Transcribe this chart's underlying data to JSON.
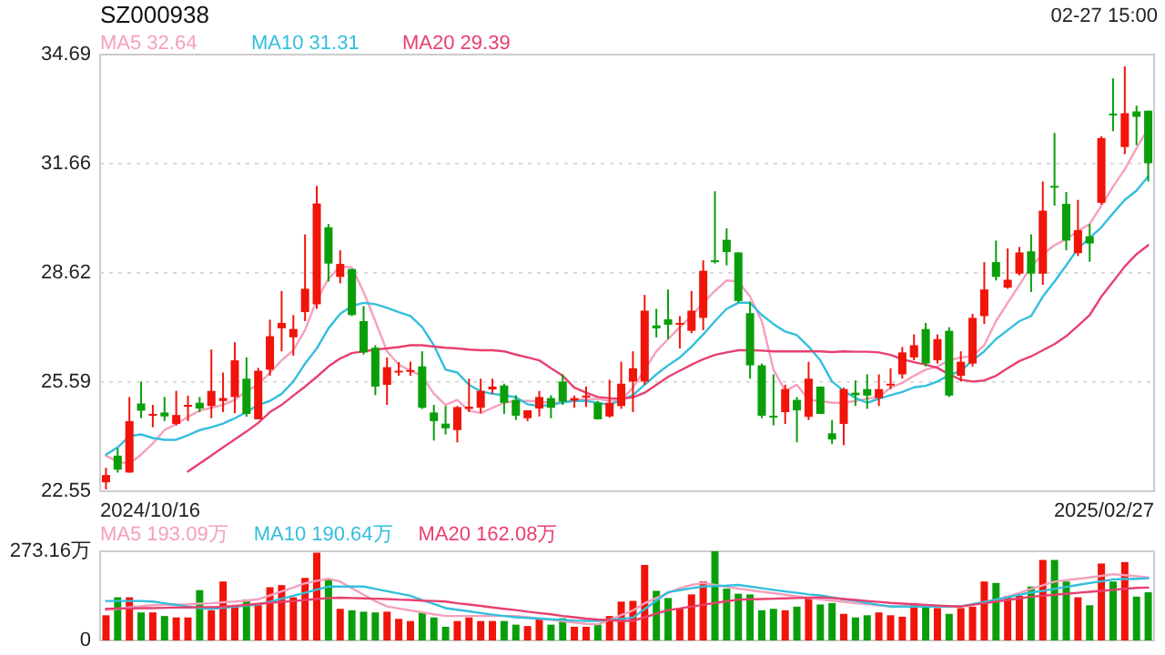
{
  "chart_data": [
    {
      "type": "candlestick",
      "title": "SZ000938",
      "annotations": [
        "02-27 15:00",
        "2024/10/16",
        "2025/02/27"
      ],
      "tick_labels": "y",
      "categories": [
        null,
        null,
        null,
        null,
        null,
        null,
        null,
        null,
        null,
        null,
        null,
        null,
        null,
        null,
        null,
        null,
        null,
        null,
        null,
        null,
        null,
        null,
        null,
        null,
        null,
        null,
        null,
        null,
        null,
        null,
        null,
        null,
        null,
        null,
        null,
        null,
        null,
        null,
        null,
        null,
        null,
        null,
        null,
        null,
        null,
        null,
        null,
        null,
        null,
        null,
        null,
        null,
        null,
        null,
        null,
        null,
        null,
        null,
        null,
        null,
        null,
        null,
        null,
        null,
        null,
        null,
        null,
        null,
        null,
        null,
        null,
        null,
        null,
        null,
        null,
        null,
        null,
        null,
        null,
        null,
        null,
        null,
        null,
        null,
        null,
        null,
        null,
        null,
        null,
        null
      ],
      "ohlc": [
        [
          22.8,
          23.2,
          22.6,
          23.0
        ],
        [
          23.54,
          23.74,
          23.07,
          23.15
        ],
        [
          23.07,
          25.17,
          23.07,
          24.5
        ],
        [
          24.99,
          25.6,
          24.58,
          24.79
        ],
        [
          24.67,
          24.95,
          24.33,
          24.7
        ],
        [
          24.74,
          25.17,
          24.5,
          24.63
        ],
        [
          24.42,
          25.34,
          24.38,
          24.67
        ],
        [
          24.92,
          25.21,
          24.5,
          24.95
        ],
        [
          25.01,
          25.17,
          24.75,
          24.85
        ],
        [
          24.92,
          26.49,
          24.58,
          25.34
        ],
        [
          25.06,
          25.85,
          24.75,
          25.14
        ],
        [
          25.17,
          26.69,
          24.72,
          26.19
        ],
        [
          25.68,
          26.27,
          24.62,
          24.7
        ],
        [
          24.55,
          25.98,
          24.55,
          25.9
        ],
        [
          25.93,
          27.32,
          25.76,
          26.86
        ],
        [
          27.08,
          28.12,
          26.44,
          27.23
        ],
        [
          26.83,
          27.45,
          26.32,
          27.06
        ],
        [
          27.53,
          29.69,
          27.28,
          28.18
        ],
        [
          27.75,
          31.04,
          27.62,
          30.55
        ],
        [
          29.89,
          29.98,
          28.38,
          28.88
        ],
        [
          28.51,
          29.25,
          28.33,
          28.87
        ],
        [
          28.73,
          28.73,
          27.42,
          27.45
        ],
        [
          27.28,
          27.7,
          26.35,
          26.41
        ],
        [
          26.54,
          26.61,
          25.22,
          25.46
        ],
        [
          25.51,
          26.27,
          24.95,
          26.0
        ],
        [
          25.87,
          26.14,
          25.76,
          25.9
        ],
        [
          25.88,
          26.15,
          25.76,
          25.92
        ],
        [
          26.02,
          26.44,
          24.84,
          24.87
        ],
        [
          24.74,
          24.95,
          23.96,
          24.5
        ],
        [
          24.43,
          24.92,
          24.13,
          24.3
        ],
        [
          24.25,
          24.92,
          23.91,
          24.89
        ],
        [
          24.84,
          25.68,
          24.75,
          24.9
        ],
        [
          24.87,
          25.68,
          24.72,
          25.34
        ],
        [
          25.38,
          25.68,
          25.26,
          25.46
        ],
        [
          25.49,
          25.54,
          24.7,
          25.01
        ],
        [
          25.09,
          25.22,
          24.53,
          24.65
        ],
        [
          24.58,
          24.8,
          24.5,
          24.8
        ],
        [
          24.85,
          25.34,
          24.63,
          25.17
        ],
        [
          25.14,
          25.22,
          24.58,
          24.87
        ],
        [
          25.6,
          25.8,
          24.95,
          25.04
        ],
        [
          25.07,
          25.21,
          24.87,
          25.14
        ],
        [
          25.16,
          25.46,
          24.89,
          25.21
        ],
        [
          25.01,
          25.06,
          24.55,
          24.55
        ],
        [
          24.63,
          25.65,
          24.6,
          25.01
        ],
        [
          24.92,
          26.15,
          24.84,
          25.54
        ],
        [
          25.6,
          26.44,
          24.75,
          25.97
        ],
        [
          25.6,
          28.01,
          25.51,
          27.57
        ],
        [
          27.16,
          27.62,
          26.83,
          27.08
        ],
        [
          27.33,
          28.16,
          26.78,
          27.18
        ],
        [
          27.18,
          27.42,
          26.52,
          27.23
        ],
        [
          27.01,
          28.12,
          26.94,
          27.57
        ],
        [
          27.37,
          28.97,
          27.03,
          28.68
        ],
        [
          28.97,
          30.89,
          28.88,
          28.93
        ],
        [
          29.54,
          29.86,
          28.83,
          29.2
        ],
        [
          29.19,
          29.19,
          27.79,
          27.84
        ],
        [
          27.5,
          27.82,
          25.68,
          26.05
        ],
        [
          26.05,
          26.1,
          24.58,
          24.65
        ],
        [
          24.65,
          25.8,
          24.38,
          24.62
        ],
        [
          24.75,
          25.51,
          24.42,
          25.39
        ],
        [
          25.09,
          25.17,
          23.91,
          24.8
        ],
        [
          24.62,
          26.15,
          24.53,
          25.68
        ],
        [
          25.46,
          25.46,
          24.7,
          24.7
        ],
        [
          24.16,
          24.53,
          23.86,
          23.99
        ],
        [
          24.42,
          25.43,
          23.83,
          25.39
        ],
        [
          25.29,
          25.63,
          24.92,
          25.22
        ],
        [
          25.39,
          25.8,
          24.84,
          25.21
        ],
        [
          25.14,
          25.8,
          24.92,
          25.39
        ],
        [
          25.49,
          25.97,
          25.39,
          25.54
        ],
        [
          25.8,
          26.56,
          25.68,
          26.41
        ],
        [
          26.27,
          26.91,
          26.19,
          26.61
        ],
        [
          27.06,
          27.23,
          26.02,
          26.1
        ],
        [
          26.19,
          26.91,
          26.1,
          26.78
        ],
        [
          27.01,
          27.11,
          25.17,
          25.21
        ],
        [
          25.76,
          26.44,
          25.6,
          26.15
        ],
        [
          26.1,
          27.48,
          26.02,
          27.37
        ],
        [
          27.42,
          28.92,
          27.2,
          28.16
        ],
        [
          28.92,
          29.52,
          28.41,
          28.51
        ],
        [
          28.21,
          29.3,
          28.18,
          28.43
        ],
        [
          28.6,
          29.34,
          28.55,
          29.19
        ],
        [
          29.22,
          29.69,
          28.09,
          28.6
        ],
        [
          28.6,
          31.16,
          28.29,
          30.35
        ],
        [
          31.04,
          32.51,
          30.49,
          30.99
        ],
        [
          30.54,
          30.87,
          29.25,
          29.52
        ],
        [
          29.17,
          30.65,
          29.09,
          29.81
        ],
        [
          29.64,
          29.98,
          28.93,
          29.44
        ],
        [
          30.57,
          32.42,
          30.52,
          32.37
        ],
        [
          33.05,
          34.03,
          32.56,
          33.01
        ],
        [
          32.12,
          34.36,
          31.92,
          33.06
        ],
        [
          33.11,
          33.27,
          32.17,
          32.96
        ],
        [
          33.13,
          33.13,
          31.16,
          31.67
        ]
      ],
      "colors": [
        "#f0140a",
        "#0a9f0a",
        "#f0140a",
        "#0a9f0a",
        "#f0140a",
        "#0a9f0a",
        "#f0140a",
        "#f0140a",
        "#0a9f0a",
        "#f0140a",
        "#f0140a",
        "#f0140a",
        "#0a9f0a",
        "#f0140a",
        "#f0140a",
        "#f0140a",
        "#f0140a",
        "#f0140a",
        "#f0140a",
        "#0a9f0a",
        "#f0140a",
        "#0a9f0a",
        "#0a9f0a",
        "#0a9f0a",
        "#f0140a",
        "#f0140a",
        "#f0140a",
        "#0a9f0a",
        "#0a9f0a",
        "#0a9f0a",
        "#f0140a",
        "#f0140a",
        "#f0140a",
        "#f0140a",
        "#0a9f0a",
        "#0a9f0a",
        "#f0140a",
        "#f0140a",
        "#0a9f0a",
        "#0a9f0a",
        "#f0140a",
        "#f0140a",
        "#0a9f0a",
        "#f0140a",
        "#f0140a",
        "#f0140a",
        "#f0140a",
        "#0a9f0a",
        "#0a9f0a",
        "#f0140a",
        "#f0140a",
        "#f0140a",
        "#0a9f0a",
        "#0a9f0a",
        "#0a9f0a",
        "#0a9f0a",
        "#0a9f0a",
        "#0a9f0a",
        "#f0140a",
        "#0a9f0a",
        "#f0140a",
        "#0a9f0a",
        "#0a9f0a",
        "#f0140a",
        "#0a9f0a",
        "#0a9f0a",
        "#f0140a",
        "#f0140a",
        "#f0140a",
        "#f0140a",
        "#0a9f0a",
        "#f0140a",
        "#0a9f0a",
        "#f0140a",
        "#f0140a",
        "#f0140a",
        "#0a9f0a",
        "#f0140a",
        "#f0140a",
        "#0a9f0a",
        "#f0140a",
        "#0a9f0a",
        "#0a9f0a",
        "#f0140a",
        "#0a9f0a",
        "#f0140a",
        "#0a9f0a",
        "#f0140a",
        "#0a9f0a",
        "#0a9f0a"
      ],
      "series": [
        {
          "type": "line",
          "name": "MA5 32.64",
          "color": "#f5a0bd",
          "values": [
            23.54,
            23.37,
            23.32,
            23.57,
            23.88,
            24.25,
            24.42,
            24.62,
            24.79,
            24.87,
            24.95,
            25.09,
            25.34,
            25.51,
            25.85,
            26.19,
            26.47,
            27.03,
            27.87,
            28.46,
            28.8,
            28.77,
            28.09,
            27.28,
            26.44,
            26.07,
            25.9,
            25.76,
            25.26,
            24.95,
            25.09,
            24.79,
            24.72,
            24.87,
            25.01,
            25.06,
            25.06,
            25.04,
            25.01,
            25.02,
            25.09,
            25.11,
            25.12,
            25.06,
            25.09,
            25.43,
            25.93,
            26.44,
            26.78,
            27.11,
            27.42,
            27.79,
            28.12,
            28.41,
            28.38,
            27.96,
            27.28,
            25.93,
            25.34,
            25.51,
            25.09,
            25.06,
            25.01,
            25.01,
            25.06,
            25.12,
            25.17,
            25.43,
            25.56,
            25.76,
            25.93,
            26.02,
            26.19,
            26.27,
            26.3,
            26.61,
            27.28,
            27.79,
            28.29,
            28.8,
            29.14,
            29.39,
            29.56,
            29.78,
            29.98,
            30.49,
            31.02,
            31.5,
            32.09,
            32.64
          ]
        },
        {
          "type": "line",
          "name": "MA10 31.31",
          "color": "#33bfdc",
          "values": [
            23.57,
            23.77,
            24.08,
            24.13,
            24.03,
            23.98,
            23.98,
            24.11,
            24.25,
            24.33,
            24.43,
            24.58,
            24.75,
            24.95,
            25.06,
            25.26,
            25.6,
            26.1,
            26.52,
            27.08,
            27.48,
            27.7,
            27.79,
            27.75,
            27.65,
            27.53,
            27.42,
            27.11,
            26.61,
            25.93,
            25.85,
            25.51,
            25.33,
            25.26,
            25.22,
            25.16,
            24.97,
            24.92,
            24.95,
            25.02,
            25.06,
            25.06,
            25.01,
            24.95,
            25.09,
            25.22,
            25.51,
            25.8,
            26.05,
            26.27,
            26.57,
            26.91,
            27.28,
            27.62,
            27.79,
            27.79,
            27.45,
            27.2,
            26.99,
            26.89,
            26.57,
            26.19,
            25.6,
            25.34,
            25.14,
            25.01,
            25.12,
            25.22,
            25.31,
            25.44,
            25.48,
            25.6,
            25.78,
            25.9,
            26.19,
            26.44,
            26.78,
            27.03,
            27.28,
            27.42,
            27.96,
            28.38,
            28.83,
            29.3,
            29.59,
            29.89,
            30.28,
            30.65,
            30.91,
            31.31
          ]
        },
        {
          "type": "line",
          "name": "MA20 29.39",
          "color": "#e8406f",
          "values": [
            null,
            null,
            null,
            null,
            null,
            null,
            null,
            23.1,
            23.32,
            23.54,
            23.77,
            23.99,
            24.21,
            24.45,
            24.75,
            24.95,
            25.21,
            25.46,
            25.73,
            26.02,
            26.24,
            26.39,
            26.44,
            26.49,
            26.52,
            26.56,
            26.61,
            26.61,
            26.57,
            26.54,
            26.52,
            26.49,
            26.47,
            26.47,
            26.44,
            26.35,
            26.27,
            26.19,
            25.97,
            25.76,
            25.43,
            25.29,
            25.17,
            25.14,
            25.12,
            25.16,
            25.29,
            25.51,
            25.73,
            25.9,
            26.07,
            26.22,
            26.34,
            26.41,
            26.47,
            26.47,
            26.46,
            26.44,
            26.44,
            26.44,
            26.44,
            26.44,
            26.42,
            26.44,
            26.43,
            26.43,
            26.41,
            26.34,
            26.22,
            26.14,
            26.07,
            25.98,
            25.8,
            25.65,
            25.6,
            25.63,
            25.76,
            25.97,
            26.17,
            26.3,
            26.47,
            26.64,
            26.86,
            27.15,
            27.45,
            27.96,
            28.38,
            28.8,
            29.14,
            29.39
          ]
        }
      ],
      "ylim": [
        22.55,
        34.69
      ],
      "yticks": [
        22.55,
        25.59,
        28.62,
        31.66,
        34.69
      ],
      "grid": "y",
      "legend": "top left"
    },
    {
      "type": "bar",
      "categories": [
        null,
        null,
        null,
        null,
        null,
        null,
        null,
        null,
        null,
        null,
        null,
        null,
        null,
        null,
        null,
        null,
        null,
        null,
        null,
        null,
        null,
        null,
        null,
        null,
        null,
        null,
        null,
        null,
        null,
        null,
        null,
        null,
        null,
        null,
        null,
        null,
        null,
        null,
        null,
        null,
        null,
        null,
        null,
        null,
        null,
        null,
        null,
        null,
        null,
        null,
        null,
        null,
        null,
        null,
        null,
        null,
        null,
        null,
        null,
        null,
        null,
        null,
        null,
        null,
        null,
        null,
        null,
        null,
        null,
        null,
        null,
        null,
        null,
        null,
        null,
        null,
        null,
        null,
        null,
        null,
        null,
        null,
        null,
        null,
        null,
        null,
        null,
        null,
        null,
        null
      ],
      "series": [
        {
          "type": "bar",
          "colors": [
            "#f0140a",
            "#0a9f0a",
            "#f0140a",
            "#0a9f0a",
            "#f0140a",
            "#0a9f0a",
            "#f0140a",
            "#f0140a",
            "#0a9f0a",
            "#f0140a",
            "#f0140a",
            "#f0140a",
            "#0a9f0a",
            "#f0140a",
            "#f0140a",
            "#f0140a",
            "#f0140a",
            "#f0140a",
            "#f0140a",
            "#0a9f0a",
            "#f0140a",
            "#0a9f0a",
            "#0a9f0a",
            "#0a9f0a",
            "#f0140a",
            "#f0140a",
            "#f0140a",
            "#0a9f0a",
            "#0a9f0a",
            "#0a9f0a",
            "#f0140a",
            "#f0140a",
            "#f0140a",
            "#f0140a",
            "#0a9f0a",
            "#0a9f0a",
            "#f0140a",
            "#f0140a",
            "#0a9f0a",
            "#0a9f0a",
            "#f0140a",
            "#f0140a",
            "#0a9f0a",
            "#f0140a",
            "#f0140a",
            "#f0140a",
            "#f0140a",
            "#0a9f0a",
            "#0a9f0a",
            "#f0140a",
            "#f0140a",
            "#f0140a",
            "#0a9f0a",
            "#0a9f0a",
            "#0a9f0a",
            "#0a9f0a",
            "#0a9f0a",
            "#0a9f0a",
            "#f0140a",
            "#0a9f0a",
            "#f0140a",
            "#0a9f0a",
            "#0a9f0a",
            "#f0140a",
            "#0a9f0a",
            "#0a9f0a",
            "#f0140a",
            "#f0140a",
            "#f0140a",
            "#f0140a",
            "#0a9f0a",
            "#f0140a",
            "#0a9f0a",
            "#f0140a",
            "#f0140a",
            "#f0140a",
            "#0a9f0a",
            "#f0140a",
            "#f0140a",
            "#0a9f0a",
            "#f0140a",
            "#0a9f0a",
            "#0a9f0a",
            "#f0140a",
            "#0a9f0a",
            "#f0140a",
            "#0a9f0a",
            "#f0140a",
            "#0a9f0a",
            "#0a9f0a"
          ],
          "values": [
            77.1,
            132.2,
            132.2,
            85.9,
            85.9,
            74.9,
            70.5,
            70.5,
            154.2,
            92.5,
            180.6,
            103.5,
            125.6,
            107.9,
            163.0,
            169.6,
            132.2,
            191.7,
            268.8,
            187.3,
            96.9,
            92.5,
            88.1,
            85.9,
            88.1,
            66.1,
            59.5,
            85.9,
            70.5,
            41.9,
            59.5,
            70.5,
            59.5,
            59.5,
            59.5,
            48.5,
            44.1,
            68.3,
            48.5,
            68.3,
            41.9,
            41.9,
            48.5,
            74.9,
            119.0,
            121.2,
            231.3,
            152.0,
            130.0,
            99.1,
            141.0,
            180.6,
            273.16,
            158.6,
            143.2,
            141.0,
            92.5,
            96.9,
            92.5,
            103.5,
            132.2,
            110.2,
            114.6,
            81.5,
            70.5,
            77.1,
            85.9,
            77.1,
            72.7,
            114.6,
            107.9,
            99.1,
            81.5,
            99.1,
            103.5,
            180.6,
            176.2,
            136.6,
            136.6,
            165.2,
            246.7,
            246.7,
            180.6,
            132.2,
            107.9,
            235.7,
            180.6,
            240.1,
            134.4,
            147.6
          ]
        },
        {
          "type": "line",
          "name": "MA5 193.09万",
          "color": "#f5a0bd",
          "values": [
            93,
            97,
            101,
            105,
            108,
            109,
            110,
            111,
            113,
            114,
            117,
            119,
            122,
            126,
            138,
            150,
            162,
            175,
            183,
            189,
            180,
            160,
            140,
            120,
            104,
            98,
            92,
            86,
            80,
            75,
            75,
            75,
            75,
            75,
            75,
            75,
            71,
            67,
            63,
            59,
            55,
            51,
            49,
            63,
            78,
            92,
            114,
            130,
            145,
            160,
            170,
            176,
            170,
            164,
            159,
            154,
            149,
            145,
            140,
            135,
            130,
            126,
            122,
            118,
            114,
            111,
            107,
            104,
            104,
            104,
            104,
            104,
            104,
            104,
            110,
            117,
            124,
            135,
            146,
            158,
            169,
            180,
            185,
            189,
            193,
            198,
            203,
            200,
            197,
            193.09
          ]
        },
        {
          "type": "line",
          "name": "MA10 190.64万",
          "color": "#33bfdc",
          "values": [
            121,
            121,
            121,
            121,
            119,
            114,
            109,
            104,
            99,
            97,
            100,
            103,
            107,
            110,
            119,
            128,
            137,
            146,
            156,
            165,
            165,
            165,
            165,
            158,
            151,
            144,
            137,
            124,
            112,
            99,
            94,
            89,
            84,
            79,
            75,
            71,
            69,
            67,
            65,
            63,
            61,
            60,
            60,
            63,
            66,
            70,
            96,
            122,
            148,
            154,
            160,
            165,
            167,
            168,
            170,
            165,
            160,
            155,
            150,
            146,
            141,
            138,
            132,
            126,
            121,
            115,
            109,
            104,
            104,
            104,
            104,
            104,
            104,
            104,
            111,
            118,
            125,
            132,
            140,
            147,
            152,
            158,
            164,
            170,
            176,
            181,
            187,
            188,
            189,
            190.64
          ]
        },
        {
          "type": "line",
          "name": "MA20 162.08万",
          "color": "#e8406f",
          "values": [
            97,
            98,
            98,
            99,
            99,
            100,
            101,
            101,
            102,
            102,
            103,
            106,
            109,
            112,
            115,
            118,
            121,
            124,
            127,
            130,
            131,
            130,
            129,
            128,
            127,
            125,
            124,
            122,
            121,
            119,
            114,
            110,
            106,
            101,
            97,
            93,
            88,
            84,
            80,
            75,
            71,
            67,
            64,
            62,
            60,
            60,
            71,
            82,
            93,
            98,
            104,
            109,
            115,
            120,
            125,
            126,
            127,
            128,
            129,
            130,
            131,
            132,
            130,
            127,
            124,
            121,
            118,
            115,
            113,
            111,
            109,
            107,
            105,
            104,
            109,
            114,
            119,
            124,
            129,
            134,
            137,
            140,
            143,
            146,
            149,
            152,
            155,
            158,
            161,
            162.08
          ]
        }
      ],
      "ylim": [
        0,
        273.16
      ],
      "yticks": [
        0,
        {
          "value": 273.16,
          "label": "273.16万"
        }
      ],
      "legend": "top left",
      "tick_labels": "y"
    }
  ]
}
